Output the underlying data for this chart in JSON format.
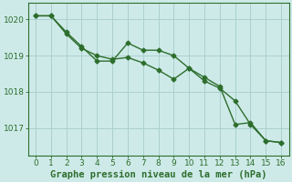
{
  "line1_x": [
    0,
    1,
    2,
    3,
    4,
    5,
    6,
    7,
    8,
    9,
    10,
    11,
    12,
    13,
    14,
    15,
    16
  ],
  "line1_y": [
    1020.1,
    1020.1,
    1019.6,
    1019.2,
    1019.0,
    1018.9,
    1018.95,
    1018.8,
    1018.6,
    1018.35,
    1018.65,
    1018.3,
    1018.1,
    1017.75,
    1017.1,
    1016.65,
    1016.6
  ],
  "line2_x": [
    0,
    1,
    2,
    3,
    4,
    5,
    6,
    7,
    8,
    9,
    10,
    11,
    12,
    13,
    14,
    15,
    16
  ],
  "line2_y": [
    1020.1,
    1020.1,
    1019.65,
    1019.25,
    1018.85,
    1018.85,
    1019.35,
    1019.15,
    1019.15,
    1019.0,
    1018.65,
    1018.4,
    1018.15,
    1017.1,
    1017.15,
    1016.65,
    1016.6
  ],
  "line_color": "#2d6e2d",
  "bg_color": "#ceeae8",
  "grid_color": "#aad0ce",
  "xlabel": "Graphe pression niveau de la mer (hPa)",
  "yticks": [
    1017,
    1018,
    1019,
    1020
  ],
  "xticks": [
    0,
    1,
    2,
    3,
    4,
    5,
    6,
    7,
    8,
    9,
    10,
    11,
    12,
    13,
    14,
    15,
    16
  ],
  "ylim": [
    1016.25,
    1020.45
  ],
  "xlim": [
    -0.5,
    16.5
  ],
  "marker": "D",
  "markersize": 2.5,
  "linewidth": 1.0,
  "xlabel_fontsize": 7.5,
  "tick_fontsize": 6.5
}
